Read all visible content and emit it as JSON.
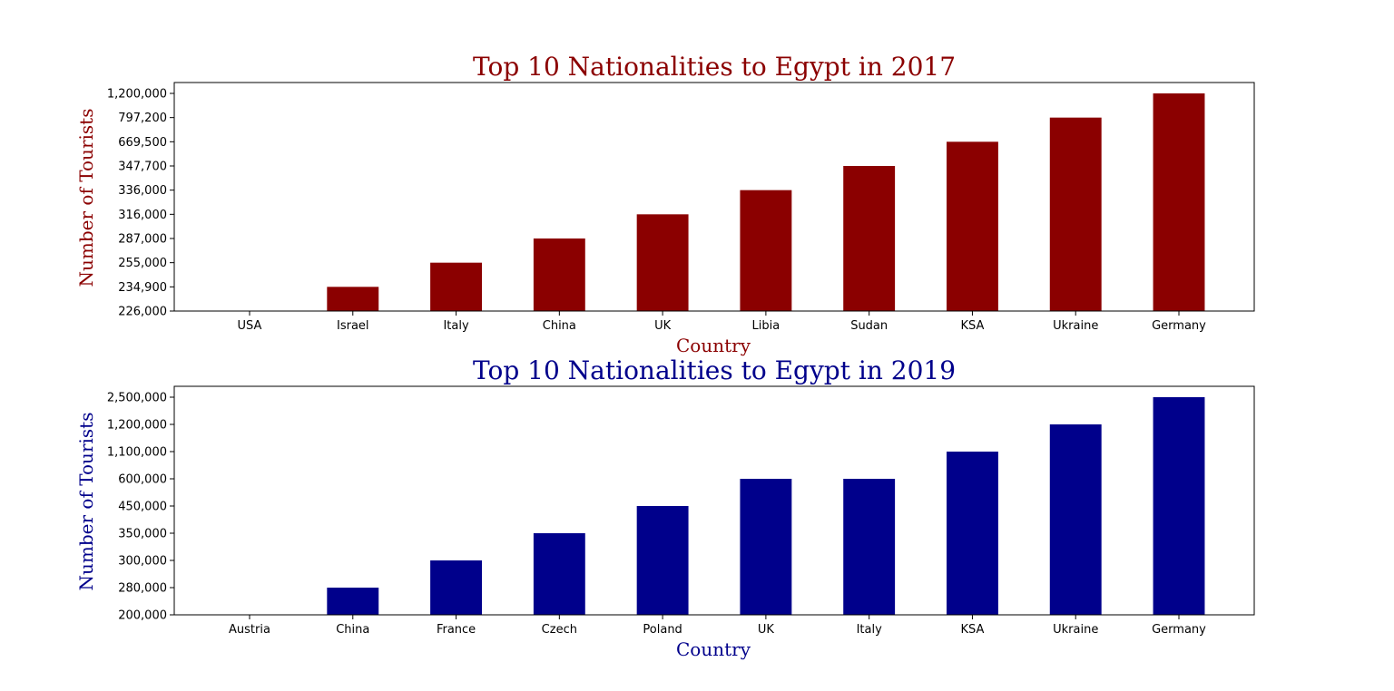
{
  "chart_data": [
    {
      "type": "bar",
      "title": "Top 10 Nationalities to Egypt in 2017",
      "xlabel": "Country",
      "ylabel": "Number of Tourists",
      "color": "#8b0000",
      "categories": [
        "USA",
        "Israel",
        "Italy",
        "China",
        "UK",
        "Libia",
        "Sudan",
        "KSA",
        "Ukraine",
        "Germany"
      ],
      "values": [
        226000,
        234900,
        255000,
        287000,
        316000,
        336000,
        347700,
        669500,
        797200,
        1200000
      ],
      "y_tick_labels": [
        "226,000",
        "234,900",
        "255,000",
        "287,000",
        "316,000",
        "336,000",
        "347,700",
        "669,500",
        "797,200",
        "1,200,000"
      ],
      "y_axis": "categorical",
      "grid": false
    },
    {
      "type": "bar",
      "title": "Top 10 Nationalities to Egypt in 2019",
      "xlabel": "Country",
      "ylabel": "Number of Tourists",
      "color": "#00008b",
      "categories": [
        "Austria",
        "China",
        "France",
        "Czech",
        "Poland",
        "UK",
        "Italy",
        "KSA",
        "Ukraine",
        "Germany"
      ],
      "values": [
        200000,
        280000,
        300000,
        350000,
        450000,
        600000,
        600000,
        1100000,
        1200000,
        2500000
      ],
      "y_tick_labels": [
        "200,000",
        "280,000",
        "300,000",
        "350,000",
        "450,000",
        "600,000",
        "1,100,000",
        "1,200,000",
        "2,500,000"
      ],
      "y_axis": "categorical",
      "grid": false
    }
  ]
}
